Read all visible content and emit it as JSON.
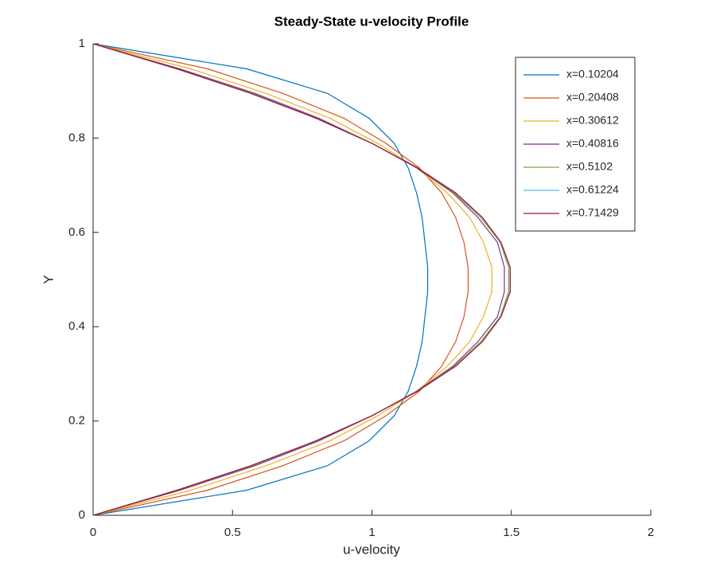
{
  "chart_data": {
    "type": "line",
    "title": "Steady-State u-velocity Profile",
    "x_label": "u-velocity",
    "y_label": "Y",
    "xlim": [
      0,
      2
    ],
    "xticks": [
      0,
      0.5,
      1,
      1.5,
      2
    ],
    "ylim": [
      0,
      1
    ],
    "yticks": [
      0,
      0.2,
      0.4,
      0.6,
      0.8,
      1
    ],
    "legend_position": "upper right",
    "y": [
      0,
      0.053,
      0.105,
      0.158,
      0.211,
      0.263,
      0.316,
      0.368,
      0.421,
      0.474,
      0.526,
      0.579,
      0.632,
      0.684,
      0.737,
      0.789,
      0.842,
      0.895,
      0.947,
      1
    ],
    "series": [
      {
        "name": "x=0.10204",
        "color": "#0072BD",
        "x": [
          0,
          0.55,
          0.84,
          0.99,
          1.08,
          1.13,
          1.16,
          1.18,
          1.19,
          1.2,
          1.2,
          1.19,
          1.18,
          1.16,
          1.13,
          1.08,
          0.99,
          0.84,
          0.55,
          0
        ]
      },
      {
        "name": "x=0.20408",
        "color": "#D95319",
        "x": [
          0,
          0.41,
          0.68,
          0.9,
          1.05,
          1.17,
          1.25,
          1.3,
          1.33,
          1.345,
          1.345,
          1.33,
          1.3,
          1.25,
          1.17,
          1.05,
          0.9,
          0.68,
          0.41,
          0
        ]
      },
      {
        "name": "x=0.30612",
        "color": "#EDB120",
        "x": [
          0,
          0.35,
          0.62,
          0.85,
          1.02,
          1.16,
          1.27,
          1.35,
          1.4,
          1.43,
          1.43,
          1.4,
          1.35,
          1.27,
          1.16,
          1.02,
          0.85,
          0.62,
          0.35,
          0
        ]
      },
      {
        "name": "x=0.40816",
        "color": "#7E2F8E",
        "x": [
          0,
          0.31,
          0.58,
          0.81,
          1.0,
          1.16,
          1.29,
          1.38,
          1.45,
          1.475,
          1.475,
          1.45,
          1.38,
          1.29,
          1.16,
          1.0,
          0.81,
          0.58,
          0.31,
          0
        ]
      },
      {
        "name": "x=0.5102",
        "color": "#77AC30",
        "x": [
          0,
          0.3,
          0.57,
          0.8,
          1.0,
          1.163,
          1.295,
          1.39,
          1.46,
          1.49,
          1.49,
          1.46,
          1.39,
          1.295,
          1.163,
          1.0,
          0.8,
          0.57,
          0.3,
          0
        ]
      },
      {
        "name": "x=0.61224",
        "color": "#4DBEEE",
        "x": [
          0,
          0.3,
          0.565,
          0.8,
          1.0,
          1.163,
          1.3,
          1.395,
          1.462,
          1.495,
          1.495,
          1.462,
          1.395,
          1.3,
          1.163,
          1.0,
          0.8,
          0.565,
          0.3,
          0
        ]
      },
      {
        "name": "x=0.71429",
        "color": "#A2142F",
        "x": [
          0,
          0.3,
          0.565,
          0.8,
          1.0,
          1.163,
          1.3,
          1.396,
          1.463,
          1.496,
          1.496,
          1.463,
          1.396,
          1.3,
          1.163,
          1.0,
          0.8,
          0.565,
          0.3,
          0
        ]
      }
    ]
  }
}
